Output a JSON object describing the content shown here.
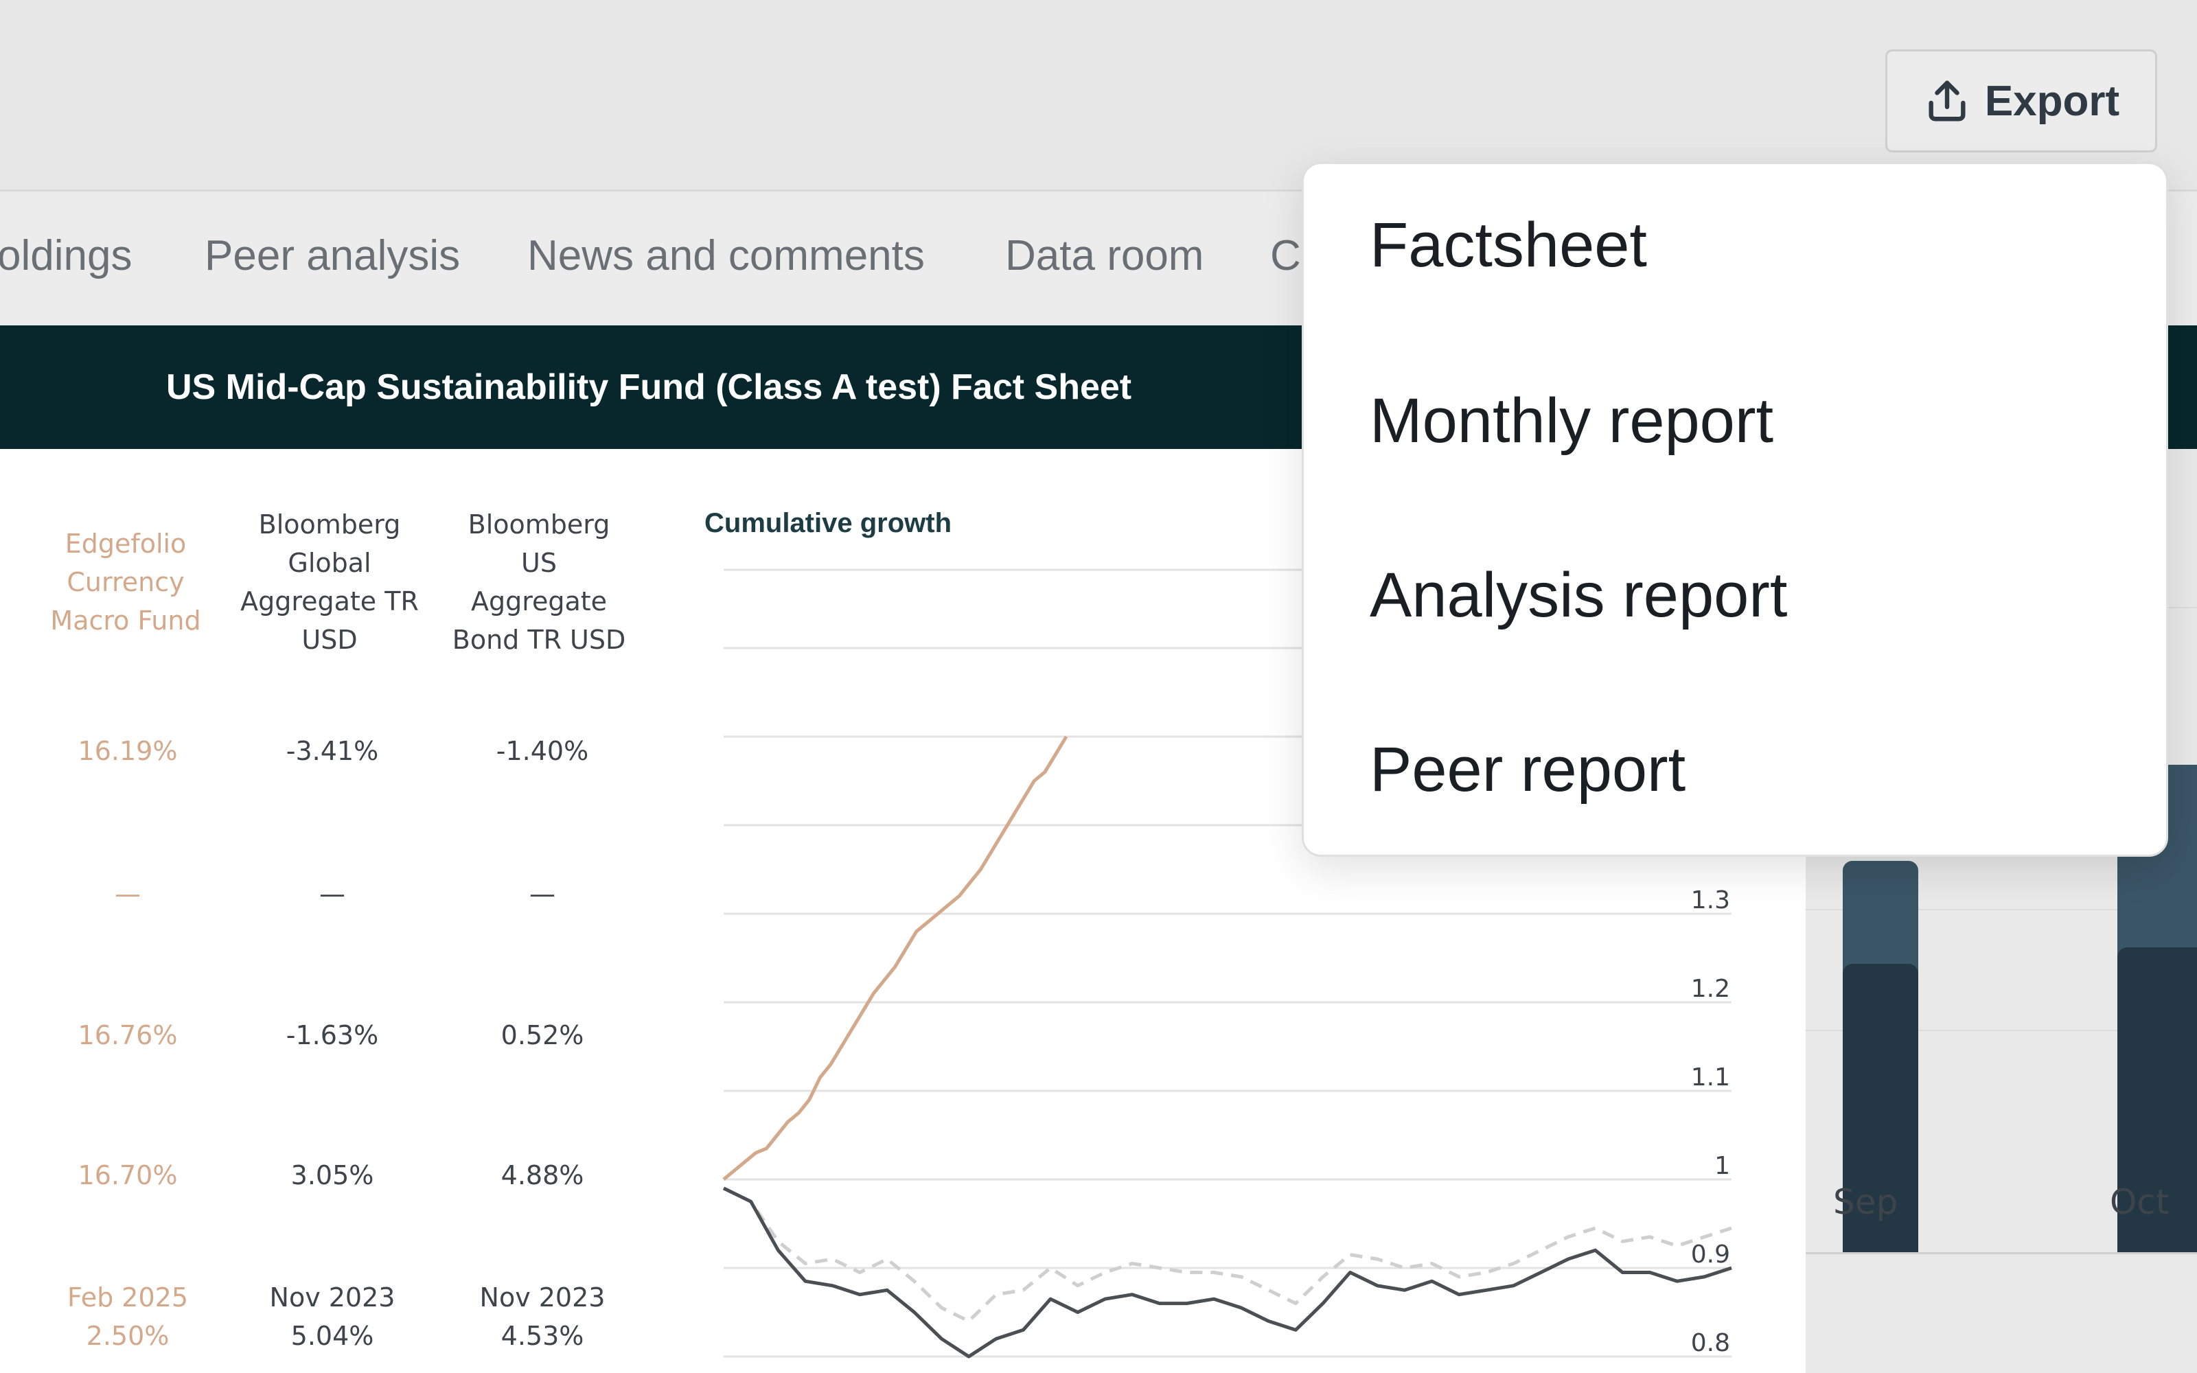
{
  "toolbar": {
    "export_label": "Export"
  },
  "tabs": [
    "oldings",
    "Peer analysis",
    "News and comments",
    "Data room",
    "C"
  ],
  "banner": {
    "title": "US Mid-Cap Sustainability Fund (Class A test) Fact Sheet"
  },
  "table": {
    "columns": [
      "Edgefolio Currency Macro Fund",
      "Bloomberg Global Aggregate TR USD",
      "Bloomberg US Aggregate Bond TR USD"
    ],
    "column_lines": [
      [
        "Edgefolio",
        "Currency",
        "Macro Fund"
      ],
      [
        "Bloomberg",
        "Global",
        "Aggregate TR",
        "USD"
      ],
      [
        "Bloomberg",
        "US",
        "Aggregate",
        "Bond TR USD"
      ]
    ],
    "rows": [
      [
        "16.19%",
        "-3.41%",
        "-1.40%"
      ],
      [
        "—",
        "—",
        "—"
      ],
      [
        "16.76%",
        "-1.63%",
        "0.52%"
      ],
      [
        "16.70%",
        "3.05%",
        "4.88%"
      ],
      [
        [
          "Feb 2025",
          "2.50%"
        ],
        [
          "Nov 2023",
          "5.04%"
        ],
        [
          "Nov 2023",
          "4.53%"
        ]
      ]
    ]
  },
  "chart_data": {
    "type": "line",
    "title": "Cumulative growth",
    "y_ticks": [
      "1.3",
      "1.2",
      "1.1",
      "1",
      "0.9",
      "0.8"
    ],
    "ylim": [
      0.8,
      1.5
    ],
    "grid": true,
    "series": [
      {
        "color": "#d4a88a",
        "style": "solid",
        "values": [
          1.0,
          1.01,
          1.02,
          1.03,
          1.035,
          1.05,
          1.065,
          1.075,
          1.09,
          1.115,
          1.13,
          1.15,
          1.17,
          1.19,
          1.21,
          1.225,
          1.24,
          1.26,
          1.28,
          1.29,
          1.3,
          1.31,
          1.32,
          1.335,
          1.35,
          1.37,
          1.39,
          1.41,
          1.43,
          1.45,
          1.46,
          1.48,
          1.5
        ]
      },
      {
        "color": "#cfcfcf",
        "style": "dashed",
        "values": [
          0.99,
          0.975,
          0.93,
          0.905,
          0.91,
          0.895,
          0.91,
          0.885,
          0.855,
          0.84,
          0.87,
          0.875,
          0.9,
          0.88,
          0.895,
          0.905,
          0.9,
          0.895,
          0.895,
          0.89,
          0.875,
          0.86,
          0.89,
          0.915,
          0.91,
          0.9,
          0.905,
          0.89,
          0.895,
          0.905,
          0.92,
          0.935,
          0.945,
          0.93,
          0.935,
          0.925,
          0.935,
          0.945
        ]
      },
      {
        "color": "#4a4f54",
        "style": "solid",
        "values": [
          0.99,
          0.975,
          0.92,
          0.885,
          0.88,
          0.87,
          0.875,
          0.85,
          0.82,
          0.8,
          0.82,
          0.83,
          0.865,
          0.85,
          0.865,
          0.87,
          0.86,
          0.86,
          0.865,
          0.855,
          0.84,
          0.83,
          0.86,
          0.895,
          0.88,
          0.875,
          0.885,
          0.87,
          0.875,
          0.88,
          0.895,
          0.91,
          0.92,
          0.895,
          0.895,
          0.885,
          0.89,
          0.9
        ]
      }
    ]
  },
  "right_chart": {
    "categories": [
      "Sep",
      "Oct"
    ]
  },
  "menu": {
    "items": [
      "Factsheet",
      "Monthly report",
      "Analysis report",
      "Peer report"
    ]
  }
}
